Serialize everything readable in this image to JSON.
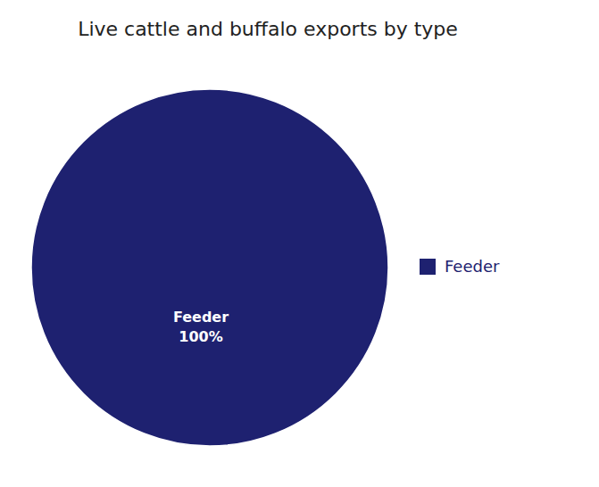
{
  "chart_data": {
    "type": "pie",
    "title": "Live cattle and buffalo exports by type",
    "categories": [
      "Feeder"
    ],
    "values": [
      100
    ],
    "value_labels": [
      "100%"
    ],
    "colors": [
      "#1e2170"
    ],
    "data_labels": true,
    "legend": "right"
  }
}
